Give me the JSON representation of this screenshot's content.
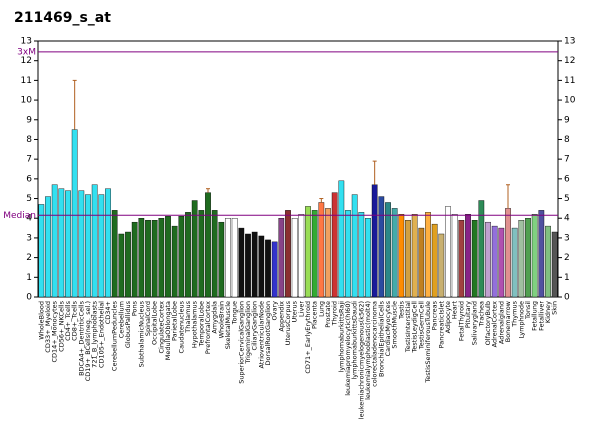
{
  "chart_data": {
    "type": "bar",
    "title": "211469_s_at",
    "categories": [
      "WholeBlood",
      "CD33+_Myeloid",
      "CD14+_Monocytes",
      "CD56+_NKCells",
      "CD4+_Tcells",
      "CD8+_Tcells",
      "BDCA4+_DentriticCells",
      "CD19+_BCells(neg._sel.)",
      "721_B_lymphoblasts",
      "CD105+_Endothelial",
      "CD34+",
      "CerebellumPeduncles",
      "Cerebellum",
      "GlobusPallidus",
      "Pons",
      "SubthalamicNucleus",
      "SpinalCord",
      "OccipitalLobe",
      "CingulateCortex",
      "MedullaOblongata",
      "ParietalLobe",
      "Caudatenucleus",
      "Thalamus",
      "Hypothalamus",
      "TemporalLobe",
      "PrefrontalCortex",
      "Amygdala",
      "WholeBrain",
      "SkeletalMuscle",
      "Tongue",
      "SuperiorCervicalGanglion",
      "TrigeminalGanglion",
      "CiliaryGanglion",
      "AtrioventricularNode",
      "DorsalRootGanglion",
      "Ovary",
      "Appendix",
      "UterusCorpus",
      "Uterus",
      "Liver",
      "CD71+_EarlyErythroid",
      "Placenta",
      "Lung",
      "Prostate",
      "Thyroid",
      "lymphomaburkittsRaji",
      "leukemiapromyelocytic(hl60)",
      "lymphomaburkittsDaudi",
      "leukemiachronicmyelogenous(k562)",
      "leukemialymphoblastic(molt4)",
      "colorectaladenocarcinoma",
      "BronchialEpithelialCells",
      "CardiacMyocytes",
      "SmoothMuscle",
      "Testis",
      "TestisInterstitial",
      "TestisLeydigCell",
      "TestisGermCell",
      "TestisSeminiferousTubule",
      "Pancreas",
      "PancreaticIslet",
      "Adipocyte",
      "Heart",
      "FetalThyroid",
      "Pituitary",
      "Salivarygland",
      "Trachea",
      "OlfactoryBulb",
      "AdrenalCortex",
      "Adrenalgland",
      "Bonemarrow",
      "Thymus",
      "Lymphnode",
      "Tonsil",
      "Fetallung",
      "Fetalliver",
      "Kidney",
      "Skin"
    ],
    "values": [
      4.7,
      5.1,
      5.7,
      5.5,
      5.4,
      8.5,
      5.4,
      5.2,
      5.7,
      5.2,
      5.5,
      4.4,
      3.2,
      3.3,
      3.8,
      4.0,
      3.9,
      3.9,
      4.0,
      4.1,
      3.6,
      4.1,
      4.3,
      4.9,
      4.4,
      5.3,
      4.4,
      3.8,
      4.0,
      4.0,
      3.5,
      3.2,
      3.3,
      3.1,
      2.9,
      2.8,
      4.0,
      4.4,
      4.0,
      4.2,
      4.6,
      4.4,
      4.8,
      4.5,
      5.3,
      5.9,
      4.4,
      5.2,
      4.3,
      4.0,
      5.7,
      5.1,
      4.8,
      4.5,
      4.2,
      3.9,
      4.2,
      3.5,
      4.3,
      3.7,
      3.2,
      4.6,
      4.2,
      3.9,
      4.2,
      3.9,
      4.9,
      3.8,
      3.6,
      3.5,
      4.5,
      3.5,
      3.9,
      4.0,
      4.2,
      4.4,
      3.6,
      3.3
    ],
    "errors": [
      null,
      null,
      null,
      null,
      null,
      2.5,
      null,
      null,
      null,
      null,
      null,
      null,
      null,
      null,
      null,
      null,
      null,
      null,
      null,
      null,
      null,
      null,
      null,
      null,
      null,
      0.2,
      null,
      null,
      null,
      null,
      null,
      null,
      null,
      null,
      null,
      null,
      null,
      null,
      null,
      null,
      null,
      null,
      0.2,
      null,
      null,
      null,
      null,
      null,
      null,
      null,
      1.2,
      null,
      null,
      null,
      null,
      null,
      null,
      null,
      null,
      null,
      null,
      null,
      null,
      null,
      null,
      null,
      null,
      null,
      null,
      null,
      1.2,
      null,
      null,
      null,
      null,
      null,
      null,
      null
    ],
    "colors": [
      "#33e0f0",
      "#33e0f0",
      "#33e0f0",
      "#33e0f0",
      "#33e0f0",
      "#33e0f0",
      "#33e0f0",
      "#33e0f0",
      "#33e0f0",
      "#33e0f0",
      "#33e0f0",
      "#1f6b1f",
      "#1f6b1f",
      "#1f6b1f",
      "#1f6b1f",
      "#1f6b1f",
      "#1f6b1f",
      "#1f6b1f",
      "#1f6b1f",
      "#1f6b1f",
      "#1f6b1f",
      "#1f6b1f",
      "#1f6b1f",
      "#1f6b1f",
      "#1f6b1f",
      "#1f6b1f",
      "#1f6b1f",
      "#1f6b1f",
      "#ffffff",
      "#ffffff",
      "#111111",
      "#111111",
      "#111111",
      "#111111",
      "#111111",
      "#3333cc",
      "#884488",
      "#8b3030",
      "#ffffff",
      "#ffffff",
      "#99dd55",
      "#33aa33",
      "#ff7744",
      "#f0a060",
      "#cc3333",
      "#33e0f0",
      "#33e0f0",
      "#33e0f0",
      "#33e0f0",
      "#33e0f0",
      "#1a1a99",
      "#2a4aa0",
      "#2a8888",
      "#44aaaa",
      "#ff8c00",
      "#d2a040",
      "#e0b050",
      "#c08020",
      "#ffb040",
      "#e0a020",
      "#c8b070",
      "#ffffff",
      "#ffffff",
      "#a04040",
      "#882288",
      "#227722",
      "#2e8b57",
      "#c0a0d0",
      "#9370db",
      "#b050b0",
      "#e09090",
      "#80c0c0",
      "#a0c0a0",
      "#50a050",
      "#80d080",
      "#5050a0",
      "#80c080",
      "#555555"
    ],
    "error_color": "#b06020",
    "reference_lines": [
      {
        "label": "3xM",
        "value": 12.45,
        "color": "#800080"
      },
      {
        "label": "Median",
        "value": 4.15,
        "color": "#800080"
      }
    ],
    "ylim": [
      0,
      13
    ],
    "yticks": [
      0,
      1,
      2,
      3,
      4,
      5,
      6,
      7,
      8,
      9,
      10,
      11,
      12,
      13
    ]
  }
}
